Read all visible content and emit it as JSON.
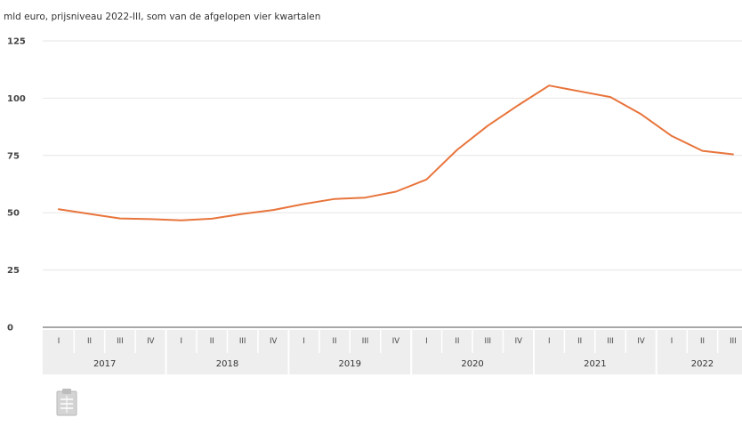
{
  "unit_label": "mld euro, prijsniveau 2022-III, som van de afgelopen vier kwartalen",
  "colors": {
    "series": "#e8743b",
    "highlight_tick": "#b5a000"
  },
  "icons": {
    "table_icon": "clipboard-icon"
  },
  "chart_data": {
    "type": "line",
    "title": "",
    "xlabel": "",
    "ylabel": "",
    "ylim": [
      0,
      125
    ],
    "yticks": [
      0,
      25,
      50,
      75,
      100,
      125
    ],
    "grid": true,
    "legend": "none",
    "years": [
      "2017",
      "2018",
      "2019",
      "2020",
      "2021",
      "2022"
    ],
    "quarters": [
      "I",
      "II",
      "III",
      "IV",
      "I",
      "II",
      "III",
      "IV",
      "I",
      "II",
      "III",
      "IV",
      "I",
      "II",
      "III",
      "IV",
      "I",
      "II",
      "III",
      "IV",
      "I",
      "II",
      "III"
    ],
    "highlighted_quarters": [
      6,
      9,
      17
    ],
    "series": [
      {
        "values": [
          51.5,
          49.5,
          47.5,
          47.2,
          46.7,
          47.4,
          49.5,
          51.2,
          53.8,
          56.0,
          56.6,
          59.2,
          64.5,
          77.5,
          88.0,
          97.0,
          105.5,
          103.0,
          100.5,
          93.0,
          83.5,
          77.0,
          75.5
        ]
      }
    ]
  }
}
